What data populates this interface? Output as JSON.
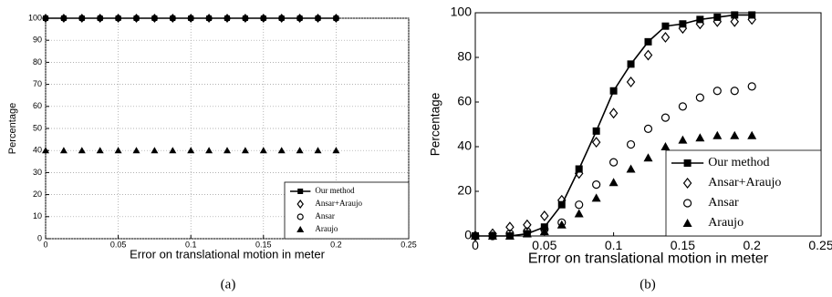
{
  "chart_data": [
    {
      "type": "line",
      "caption": "(a)",
      "xlabel": "Error on translational motion in meter",
      "ylabel": "Percentage",
      "x": [
        0,
        0.0125,
        0.025,
        0.0375,
        0.05,
        0.0625,
        0.075,
        0.0875,
        0.1,
        0.1125,
        0.125,
        0.1375,
        0.15,
        0.1625,
        0.175,
        0.1875,
        0.2
      ],
      "xlim": [
        0,
        0.25
      ],
      "xticks": [
        0,
        0.05,
        0.1,
        0.15,
        0.2,
        0.25
      ],
      "ylim": [
        0,
        100
      ],
      "yticks": [
        0,
        10,
        20,
        30,
        40,
        50,
        60,
        70,
        80,
        90,
        100
      ],
      "grid": true,
      "legend": "lower right",
      "series": [
        {
          "name": "Our method",
          "color": "#000000",
          "marker": "square",
          "line": true,
          "values": [
            100,
            100,
            100,
            100,
            100,
            100,
            100,
            100,
            100,
            100,
            100,
            100,
            100,
            100,
            100,
            100,
            100
          ]
        },
        {
          "name": "Ansar+Araujo",
          "color": "#000000",
          "marker": "diamond",
          "line": false,
          "values": [
            100,
            100,
            100,
            100,
            100,
            100,
            100,
            100,
            100,
            100,
            100,
            100,
            100,
            100,
            100,
            100,
            100
          ]
        },
        {
          "name": "Ansar",
          "color": "#000000",
          "marker": "circle",
          "line": false,
          "values": [
            100,
            100,
            100,
            100,
            100,
            100,
            100,
            100,
            100,
            100,
            100,
            100,
            100,
            100,
            100,
            100,
            100
          ]
        },
        {
          "name": "Araujo",
          "color": "#000000",
          "marker": "triangle",
          "line": false,
          "values": [
            40,
            40,
            40,
            40,
            40,
            40,
            40,
            40,
            40,
            40,
            40,
            40,
            40,
            40,
            40,
            40,
            40
          ]
        }
      ]
    },
    {
      "type": "line",
      "caption": "(b)",
      "xlabel": "Error on translational motion in meter",
      "ylabel": "Percentage",
      "x": [
        0,
        0.0125,
        0.025,
        0.0375,
        0.05,
        0.0625,
        0.075,
        0.0875,
        0.1,
        0.1125,
        0.125,
        0.1375,
        0.15,
        0.1625,
        0.175,
        0.1875,
        0.2
      ],
      "xlim": [
        0,
        0.25
      ],
      "xticks": [
        0,
        0.05,
        0.1,
        0.15,
        0.2,
        0.25
      ],
      "ylim": [
        0,
        100
      ],
      "yticks": [
        0,
        20,
        40,
        60,
        80,
        100
      ],
      "grid": false,
      "legend": "lower right",
      "series": [
        {
          "name": "Our method",
          "color": "#000000",
          "marker": "square",
          "line": true,
          "values": [
            0,
            0,
            0,
            1,
            4,
            14,
            30,
            47,
            65,
            77,
            87,
            94,
            95,
            97,
            98,
            99,
            99
          ]
        },
        {
          "name": "Ansar+Araujo",
          "color": "#000000",
          "marker": "diamond",
          "line": false,
          "values": [
            0,
            1,
            4,
            5,
            9,
            16,
            28,
            42,
            55,
            69,
            81,
            89,
            93,
            95,
            96,
            96,
            97
          ]
        },
        {
          "name": "Ansar",
          "color": "#000000",
          "marker": "circle",
          "line": false,
          "values": [
            0,
            0,
            1,
            2,
            3,
            6,
            14,
            23,
            33,
            41,
            48,
            53,
            58,
            62,
            65,
            65,
            67
          ]
        },
        {
          "name": "Araujo",
          "color": "#000000",
          "marker": "triangle",
          "line": false,
          "values": [
            0,
            0,
            0,
            1,
            2,
            5,
            10,
            17,
            24,
            30,
            35,
            40,
            43,
            44,
            45,
            45,
            45
          ]
        }
      ]
    }
  ]
}
